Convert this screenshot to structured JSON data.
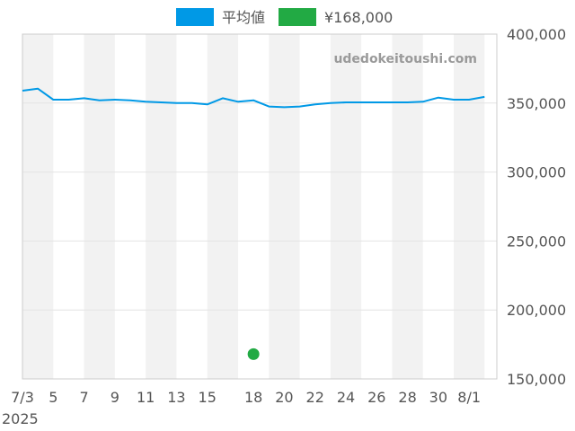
{
  "chart_data": {
    "type": "line",
    "title": "",
    "xlabel": "",
    "ylabel": "",
    "watermark": "udedokeitoushi.com",
    "year_label": "2025",
    "ylim": [
      150000,
      400000
    ],
    "y_ticks": [
      {
        "value": 400000,
        "label": "400,000"
      },
      {
        "value": 350000,
        "label": "350,000"
      },
      {
        "value": 300000,
        "label": "300,000"
      },
      {
        "value": 250000,
        "label": "250,000"
      },
      {
        "value": 200000,
        "label": "200,000"
      },
      {
        "value": 150000,
        "label": "150,000"
      }
    ],
    "x_ticks": [
      {
        "day": 3,
        "label": "7/3"
      },
      {
        "day": 5,
        "label": "5"
      },
      {
        "day": 7,
        "label": "7"
      },
      {
        "day": 9,
        "label": "9"
      },
      {
        "day": 11,
        "label": "11"
      },
      {
        "day": 13,
        "label": "13"
      },
      {
        "day": 15,
        "label": "15"
      },
      {
        "day": 18,
        "label": "18"
      },
      {
        "day": 20,
        "label": "20"
      },
      {
        "day": 22,
        "label": "22"
      },
      {
        "day": 24,
        "label": "24"
      },
      {
        "day": 26,
        "label": "26"
      },
      {
        "day": 28,
        "label": "28"
      },
      {
        "day": 30,
        "label": "30"
      },
      {
        "day": 32,
        "label": "8/1"
      }
    ],
    "legend": [
      {
        "label": "平均値",
        "color": "#0099e6"
      },
      {
        "label": "¥168,000",
        "color": "#22aa44"
      }
    ],
    "series": [
      {
        "name": "平均値",
        "color": "#0099e6",
        "x": [
          3,
          4,
          5,
          6,
          7,
          8,
          9,
          10,
          11,
          12,
          13,
          14,
          15,
          16,
          17,
          18,
          19,
          20,
          21,
          22,
          23,
          24,
          25,
          26,
          27,
          28,
          29,
          30,
          31,
          32,
          33
        ],
        "values": [
          359000,
          360500,
          352500,
          352500,
          353500,
          352000,
          352500,
          352000,
          351000,
          350500,
          350000,
          350000,
          349000,
          353500,
          351000,
          352000,
          347500,
          347000,
          347500,
          349000,
          350000,
          350500,
          350500,
          350500,
          350500,
          350500,
          351000,
          354000,
          352500,
          352500,
          354500
        ]
      }
    ],
    "points": [
      {
        "name": "¥168,000",
        "color": "#22aa44",
        "x": 18,
        "value": 168000
      }
    ]
  }
}
